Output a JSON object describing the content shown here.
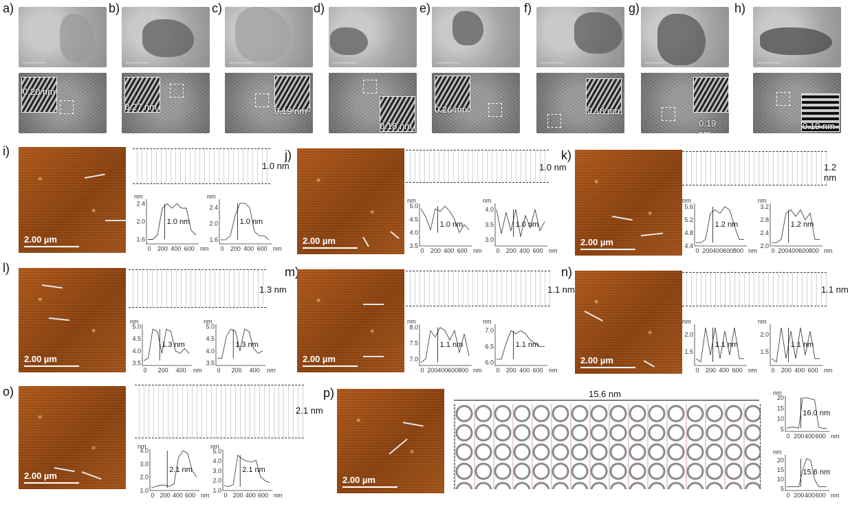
{
  "panel_labels": [
    "a)",
    "b)",
    "c)",
    "d)",
    "e)",
    "f)",
    "g)",
    "h)",
    "i)",
    "j)",
    "k)",
    "l)",
    "m)",
    "n)",
    "o)",
    "p)"
  ],
  "tem_spacings": [
    "0.20 nm",
    "0.27 nm",
    "0.19 nm",
    "0.18 nm",
    "0.26 nm",
    "0.18 nm",
    "0.19 nm",
    "0.19 nm"
  ],
  "afm_scale": "2.00 µm",
  "mol_heights": [
    "1.0 nm",
    "1.0 nm",
    "1.2 nm",
    "1.3 nm",
    "1.1 nm",
    "1.1 nm",
    "2.1 nm"
  ],
  "p_panel": {
    "width_label": "15.6 nm"
  },
  "axis_unit": "nm",
  "colors": {
    "afm": "#9a4b14",
    "line": "#333333"
  },
  "chart_data": [
    {
      "type": "line",
      "panel": "i-1",
      "ylim": [
        1.5,
        2.5
      ],
      "yticks": [
        "1.6",
        "2.0",
        "2.4"
      ],
      "xticks": [
        "0",
        "200",
        "400",
        "600"
      ],
      "xunit": "nm",
      "ylabel": "nm",
      "annotation": "1.0 nm",
      "y": [
        1.6,
        1.6,
        1.7,
        2.3,
        2.4,
        2.3,
        2.4,
        2.3,
        2.3,
        1.8,
        1.7
      ]
    },
    {
      "type": "line",
      "panel": "i-2",
      "ylim": [
        1.5,
        2.6
      ],
      "yticks": [
        "1.6",
        "2.0",
        "2.4"
      ],
      "xticks": [
        "0",
        "200",
        "400",
        "600"
      ],
      "xunit": "nm",
      "ylabel": "nm",
      "annotation": "1.0 nm",
      "y": [
        1.6,
        1.6,
        1.7,
        2.2,
        2.5,
        2.5,
        2.4,
        1.8,
        1.7,
        1.7,
        1.6
      ]
    },
    {
      "type": "line",
      "panel": "j-1",
      "ylim": [
        3.5,
        5.1
      ],
      "yticks": [
        "3.5",
        "4.0",
        "4.5",
        "5.0"
      ],
      "xticks": [
        "0",
        "200",
        "400",
        "600"
      ],
      "xunit": "nm",
      "ylabel": "nm",
      "annotation": "1.0 nm",
      "y": [
        4.9,
        4.6,
        4.1,
        4.9,
        4.8,
        5.0,
        4.8,
        4.5,
        4.0,
        4.3,
        4.1
      ]
    },
    {
      "type": "line",
      "panel": "j-2",
      "ylim": [
        2.8,
        4.2
      ],
      "yticks": [
        "3.0",
        "3.5",
        "4.0"
      ],
      "xticks": [
        "0",
        "200",
        "400",
        "600"
      ],
      "xunit": "nm",
      "ylabel": "nm",
      "annotation": "1.0 nm",
      "y": [
        4.0,
        3.2,
        3.9,
        3.3,
        4.0,
        3.1,
        3.8,
        3.4,
        4.0,
        3.3,
        3.6
      ]
    },
    {
      "type": "line",
      "panel": "k-1",
      "ylim": [
        4.4,
        5.7
      ],
      "yticks": [
        "4.4",
        "4.8",
        "5.2",
        "5.6"
      ],
      "xticks": [
        "0",
        "200",
        "400",
        "600",
        "800"
      ],
      "xunit": "nm",
      "ylabel": "nm",
      "annotation": "1.2 nm",
      "y": [
        4.5,
        4.5,
        4.6,
        5.4,
        5.5,
        5.4,
        5.6,
        5.5,
        5.0,
        4.6,
        4.6
      ]
    },
    {
      "type": "line",
      "panel": "k-2",
      "ylim": [
        2.0,
        3.3
      ],
      "yticks": [
        "2.0",
        "2.4",
        "2.8",
        "3.2"
      ],
      "xticks": [
        "0",
        "200",
        "400",
        "600",
        "800"
      ],
      "xunit": "nm",
      "ylabel": "nm",
      "annotation": "1.2 nm",
      "y": [
        2.1,
        2.1,
        2.2,
        3.0,
        3.1,
        2.9,
        3.1,
        2.8,
        3.0,
        2.2,
        2.2
      ]
    },
    {
      "type": "line",
      "panel": "l-1",
      "ylim": [
        3.4,
        5.1
      ],
      "yticks": [
        "3.5",
        "4.0",
        "4.5",
        "5.0"
      ],
      "xticks": [
        "0",
        "200",
        "400"
      ],
      "xunit": "nm",
      "ylabel": "nm",
      "annotation": "1.3 nm",
      "y": [
        3.6,
        3.7,
        4.9,
        4.8,
        3.9,
        4.9,
        4.8,
        4.0,
        3.9,
        4.1,
        3.9
      ]
    },
    {
      "type": "line",
      "panel": "l-2",
      "ylim": [
        3.4,
        5.1
      ],
      "yticks": [
        "3.5",
        "4.0",
        "4.5",
        "5.0"
      ],
      "xticks": [
        "0",
        "200",
        "400"
      ],
      "xunit": "nm",
      "ylabel": "nm",
      "annotation": "1.3 nm",
      "y": [
        3.7,
        3.7,
        4.6,
        4.9,
        4.8,
        4.0,
        4.9,
        4.8,
        4.1,
        3.9,
        4.0
      ]
    },
    {
      "type": "line",
      "panel": "m-1",
      "ylim": [
        6.8,
        8.1
      ],
      "yticks": [
        "7.0",
        "7.5",
        "8.0"
      ],
      "xticks": [
        "0",
        "200",
        "400",
        "600",
        "800"
      ],
      "xunit": "nm",
      "ylabel": "nm",
      "annotation": "1.1 nm",
      "y": [
        6.9,
        7.0,
        7.9,
        7.7,
        8.0,
        7.9,
        7.6,
        7.9,
        7.2,
        7.8,
        7.1
      ]
    },
    {
      "type": "line",
      "panel": "m-2",
      "ylim": [
        5.9,
        7.2
      ],
      "yticks": [
        "6.0",
        "6.5",
        "7.0"
      ],
      "xticks": [
        "0",
        "200",
        "400",
        "600"
      ],
      "xunit": "nm",
      "ylabel": "nm",
      "annotation": "1.1 nm",
      "y": [
        6.1,
        6.1,
        6.6,
        7.0,
        6.9,
        7.0,
        6.9,
        6.7,
        6.6,
        6.5,
        6.5
      ]
    },
    {
      "type": "line",
      "panel": "n-1",
      "ylim": [
        1.1,
        2.3
      ],
      "yticks": [
        "1.5",
        "2.0"
      ],
      "xticks": [
        "0",
        "200",
        "400",
        "600"
      ],
      "xunit": "nm",
      "ylabel": "nm",
      "annotation": "1.1 nm",
      "y": [
        1.3,
        1.2,
        2.2,
        1.4,
        2.2,
        1.3,
        2.1,
        1.4,
        2.2,
        1.3,
        1.3
      ]
    },
    {
      "type": "line",
      "panel": "n-2",
      "ylim": [
        1.1,
        2.3
      ],
      "yticks": [
        "1.5",
        "2.0"
      ],
      "xticks": [
        "0",
        "200",
        "400",
        "600"
      ],
      "xunit": "nm",
      "ylabel": "nm",
      "annotation": "1.1 nm",
      "y": [
        1.3,
        1.2,
        2.2,
        1.3,
        2.1,
        1.3,
        2.2,
        1.4,
        2.1,
        1.3,
        1.3
      ]
    },
    {
      "type": "line",
      "panel": "o-1",
      "ylim": [
        1.0,
        4.1
      ],
      "yticks": [
        "1.0",
        "2.0",
        "3.0",
        "4.0"
      ],
      "xticks": [
        "0",
        "200",
        "400",
        "600"
      ],
      "xunit": "nm",
      "ylabel": "nm",
      "annotation": "2.1 nm",
      "y": [
        1.2,
        1.3,
        1.4,
        1.4,
        1.3,
        1.5,
        3.5,
        4.0,
        3.8,
        2.5,
        2.0
      ]
    },
    {
      "type": "line",
      "panel": "o-2",
      "ylim": [
        1.0,
        5.2
      ],
      "yticks": [
        "1.0",
        "2.0",
        "3.0",
        "4.0",
        "5.0"
      ],
      "xticks": [
        "0",
        "200",
        "400",
        "600"
      ],
      "xunit": "nm",
      "ylabel": "nm",
      "annotation": "2.1 nm",
      "y": [
        1.5,
        1.4,
        1.6,
        4.6,
        4.2,
        4.0,
        3.9,
        4.1,
        2.4,
        2.0,
        1.8
      ]
    },
    {
      "type": "line",
      "panel": "p-1",
      "ylim": [
        4,
        21
      ],
      "yticks": [
        "5",
        "10",
        "15",
        "20"
      ],
      "xticks": [
        "0",
        "200",
        "400",
        "600"
      ],
      "xunit": "nm",
      "ylabel": "nm",
      "annotation": "16.0 nm",
      "y": [
        5.5,
        6,
        6,
        5.5,
        20,
        20,
        19.5,
        19,
        6,
        5.5,
        5.5
      ]
    },
    {
      "type": "line",
      "panel": "p-2",
      "ylim": [
        4,
        23
      ],
      "yticks": [
        "5",
        "10",
        "15",
        "20"
      ],
      "xticks": [
        "0",
        "200",
        "400",
        "600"
      ],
      "xunit": "nm",
      "ylabel": "nm",
      "annotation": "15.6 nm",
      "y": [
        6,
        6,
        6,
        6,
        15,
        21,
        20,
        10,
        6,
        6,
        6
      ]
    }
  ]
}
